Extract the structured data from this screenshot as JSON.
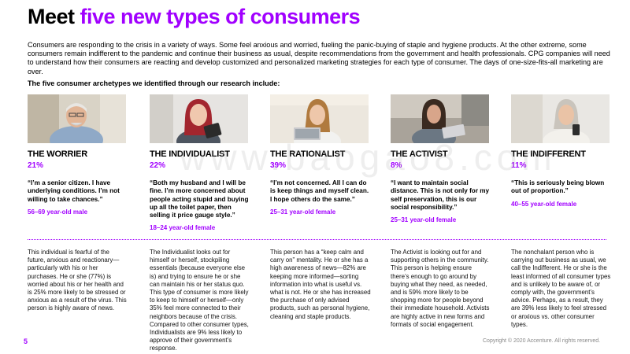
{
  "title": {
    "prefix": "Meet ",
    "highlight": "five new types of consumers"
  },
  "intro": "Consumers are responding to the crisis in a variety of ways. Some feel anxious and worried, fueling the panic-buying of staple and hygiene products. At the other extreme, some consumers remain indifferent to the pandemic and continue their business as usual, despite recommendations from the government and health professionals. CPG companies will need to understand how their consumers are reacting and develop customized and personalized marketing strategies for each type of consumer. The days of one-size-fits-all marketing are over.",
  "subhead": "The five consumer archetypes we identified through our research include:",
  "watermark": "www.baogao8.com",
  "colors": {
    "accent": "#a100ff"
  },
  "archetypes": [
    {
      "name": "THE WORRIER",
      "percent": "21%",
      "quote": "“I’m a senior citizen. I have underlying conditions. I’m not willing to take chances.”",
      "age": "56–69 year-old male",
      "description": "This individual is fearful of the future, anxious and reactionary—particularly with his or her purchases. He or she (77%) is worried about his or her health and is 25% more likely to be stressed or anxious as a result of the virus. This person is highly aware of news.",
      "photo": "senior-man-photo"
    },
    {
      "name": "THE INDIVIDUALIST",
      "percent": "22%",
      "quote": "“Both my husband and I will be fine. I’m more concerned about people acting stupid and buying up all the toilet paper, then selling it price gauge style.”",
      "age": "18–24 year-old female",
      "description": "The Individualist looks out for himself or herself, stockpiling essentials (because everyone else is) and trying to ensure he or she can maintain his or her status quo. This type of consumer is more likely to keep to himself or herself—only 35% feel more connected to their neighbors because of the crisis. Compared to other consumer types, Individualists are 9% less likely to approve of their government’s response.",
      "photo": "young-woman-tablet-photo"
    },
    {
      "name": "THE RATIONALIST",
      "percent": "39%",
      "quote": "“I’m not concerned. All I can do is keep things and myself clean. I hope others do the same.”",
      "age": "25–31 year-old female",
      "description": "This person has a “keep calm and carry on” mentality. He or she has a high awareness of news—82% are keeping more informed—sorting information into what is useful vs. what is not. He or she has increased the purchase of only advised products, such as personal hygiene, cleaning and staple products.",
      "photo": "woman-laptop-photo"
    },
    {
      "name": "THE ACTIVIST",
      "percent": "8%",
      "quote": "“I want to maintain social distance. This is not only for my self preservation, this is our social responsibility.”",
      "age": "25–31 year-old female",
      "description": "The Activist is looking out for and supporting others in the community. This person is helping ensure there’s enough to go around by buying what they need, as needed, and is 59% more likely to be shopping more for people beyond their immediate household. Activists are highly active in new forms and formats of social engagement.",
      "photo": "woman-sofa-laptop-photo"
    },
    {
      "name": "THE INDIFFERENT",
      "percent": "11%",
      "quote": "“This is seriously being blown out of proportion.”",
      "age": "40–55 year-old female",
      "description": "The nonchalant person who is carrying out business as usual, we call the Indifferent. He or she is the least informed of all consumer types and is unlikely to be aware of, or comply with, the government’s advice. Perhaps, as a result, they are 39% less likely to feel stressed or anxious vs. other consumer types.",
      "photo": "older-woman-phone-photo"
    }
  ],
  "page_number": "5",
  "copyright": "Copyright © 2020 Accenture. All rights reserved."
}
